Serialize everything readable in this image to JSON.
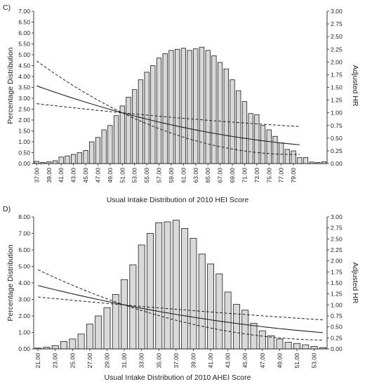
{
  "chart_data": [
    {
      "type": "bar",
      "panel_label": "C)",
      "xlabel": "Usual Intake Distribution of 2010 HEI Score",
      "ylabel": "Percentage Distribution",
      "y2label": "Adjusted HR",
      "ylim": [
        0,
        7
      ],
      "y_ticks": [
        "0.00",
        "0.50",
        "1.00",
        "1.50",
        "2.00",
        "2.50",
        "3.00",
        "3.50",
        "4.00",
        "4.50",
        "5.00",
        "5.50",
        "6.00",
        "6.50",
        "7.00"
      ],
      "y2lim": [
        0,
        3
      ],
      "y2_ticks": [
        "0.00",
        "0.25",
        "0.50",
        "0.75",
        "1.00",
        "1.25",
        "1.50",
        "1.75",
        "2.00",
        "2.25",
        "2.50",
        "2.75",
        "3.00"
      ],
      "x_start": 37,
      "x_step": 1,
      "x_tick_labels": [
        "37.00",
        "39.00",
        "41.00",
        "43.00",
        "45.00",
        "47.00",
        "49.00",
        "51.00",
        "53.00",
        "55.00",
        "57.00",
        "59.00",
        "61.00",
        "63.00",
        "65.00",
        "67.00",
        "69.00",
        "71.00",
        "73.00",
        "75.00",
        "77.00",
        "79.00"
      ],
      "values": [
        0.1,
        0.05,
        0.08,
        0.13,
        0.3,
        0.35,
        0.42,
        0.5,
        0.6,
        1.0,
        1.2,
        1.55,
        1.75,
        2.2,
        2.65,
        3.05,
        3.4,
        3.85,
        4.2,
        4.5,
        4.85,
        5.05,
        5.2,
        5.25,
        5.3,
        5.2,
        5.27,
        5.35,
        5.2,
        4.95,
        4.65,
        4.35,
        3.85,
        3.35,
        2.85,
        2.3,
        2.25,
        1.75,
        1.55,
        1.25,
        0.95,
        0.65,
        0.58,
        0.28,
        0.28,
        0.07,
        0.05,
        0.08
      ],
      "hr_series": [
        {
          "style": "solid",
          "points": [
            [
              37,
              1.53
            ],
            [
              51,
              1.0
            ],
            [
              80,
              0.37
            ]
          ]
        },
        {
          "style": "dashed",
          "points": [
            [
              37,
              2.02
            ],
            [
              51,
              1.0
            ],
            [
              80,
              0.18
            ]
          ]
        },
        {
          "style": "dashed",
          "points": [
            [
              37,
              1.18
            ],
            [
              51,
              1.0
            ],
            [
              80,
              0.73
            ]
          ]
        }
      ]
    },
    {
      "type": "bar",
      "panel_label": "D)",
      "xlabel": "Usual Intake Distribution of 2010 AHEI Score",
      "ylabel": "Percentage Distribution",
      "y2label": "Adjusted HR",
      "ylim": [
        0,
        8
      ],
      "y_ticks": [
        "0.00",
        "1.00",
        "2.00",
        "3.00",
        "4.00",
        "5.00",
        "6.00",
        "7.00",
        "8.00"
      ],
      "y2lim": [
        0,
        3
      ],
      "y2_ticks": [
        "0.00",
        "0.25",
        "0.50",
        "0.75",
        "1.00",
        "1.25",
        "1.50",
        "1.75",
        "2.00",
        "2.25",
        "2.50",
        "2.75",
        "3.00"
      ],
      "x_start": 21,
      "x_step": 1,
      "x_tick_labels": [
        "21.00",
        "23.00",
        "25.00",
        "27.00",
        "29.00",
        "31.00",
        "33.00",
        "35.00",
        "37.00",
        "39.00",
        "41.00",
        "43.00",
        "45.00",
        "47.00",
        "49.00",
        "51.00",
        "53.00"
      ],
      "values": [
        0.05,
        0.1,
        0.2,
        0.45,
        0.6,
        0.9,
        1.5,
        2.0,
        2.5,
        3.3,
        4.2,
        5.1,
        6.3,
        7.0,
        7.65,
        7.7,
        7.8,
        7.3,
        6.7,
        5.75,
        5.15,
        4.55,
        3.45,
        2.7,
        2.35,
        1.55,
        1.1,
        0.8,
        0.6,
        0.4,
        0.33,
        0.25,
        0.15,
        0.08
      ],
      "hr_series": [
        {
          "style": "solid",
          "points": [
            [
              21,
              1.44
            ],
            [
              31,
              1.0
            ],
            [
              54,
              0.37
            ]
          ]
        },
        {
          "style": "dashed",
          "points": [
            [
              21,
              1.8
            ],
            [
              31,
              1.0
            ],
            [
              54,
              0.2
            ]
          ]
        },
        {
          "style": "dashed",
          "points": [
            [
              21,
              1.18
            ],
            [
              31,
              1.0
            ],
            [
              54,
              0.66
            ]
          ]
        }
      ]
    }
  ]
}
